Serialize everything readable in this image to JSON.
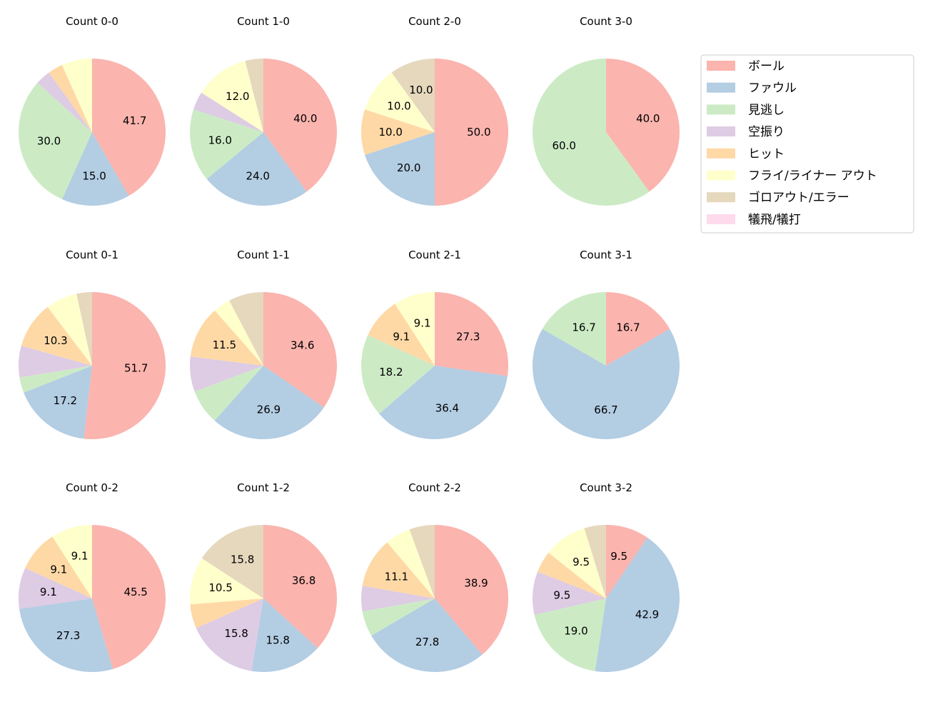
{
  "chart_data": {
    "type": "pie",
    "categories": [
      "ボール",
      "ファウル",
      "見逃し",
      "空振り",
      "ヒット",
      "フライ/ライナー アウト",
      "ゴロアウト/エラー",
      "犠飛/犠打"
    ],
    "colors": [
      "#fbb4ae",
      "#b3cde3",
      "#ccebc5",
      "#decbe4",
      "#fed9a6",
      "#ffffcc",
      "#e5d8bd",
      "#fddaec"
    ],
    "start_angle": 90,
    "direction": "clockwise",
    "legend_position": "right",
    "pies": [
      {
        "title": "Count 0-0",
        "values": [
          41.7,
          15.0,
          30.0,
          3.3,
          3.3,
          6.7,
          0,
          0
        ]
      },
      {
        "title": "Count 1-0",
        "values": [
          40.0,
          24.0,
          16.0,
          4.0,
          0,
          12.0,
          4.0,
          0
        ]
      },
      {
        "title": "Count 2-0",
        "values": [
          50.0,
          20.0,
          0,
          0,
          10.0,
          10.0,
          10.0,
          0
        ]
      },
      {
        "title": "Count 3-0",
        "values": [
          40.0,
          0,
          60.0,
          0,
          0,
          0,
          0,
          0
        ]
      },
      {
        "title": "Count 0-1",
        "values": [
          51.7,
          17.2,
          3.4,
          6.9,
          10.3,
          6.9,
          3.4,
          0
        ]
      },
      {
        "title": "Count 1-1",
        "values": [
          34.6,
          26.9,
          7.7,
          7.7,
          11.5,
          3.8,
          7.7,
          0
        ]
      },
      {
        "title": "Count 2-1",
        "values": [
          27.3,
          36.4,
          18.2,
          0,
          9.1,
          9.1,
          0,
          0
        ]
      },
      {
        "title": "Count 3-1",
        "values": [
          16.7,
          66.7,
          16.7,
          0,
          0,
          0,
          0,
          0
        ]
      },
      {
        "title": "Count 0-2",
        "values": [
          45.5,
          27.3,
          0,
          9.1,
          9.1,
          9.1,
          0,
          0
        ]
      },
      {
        "title": "Count 1-2",
        "values": [
          36.8,
          15.8,
          0,
          15.8,
          5.3,
          10.5,
          15.8,
          0
        ]
      },
      {
        "title": "Count 2-2",
        "values": [
          38.9,
          27.8,
          5.6,
          5.6,
          11.1,
          5.6,
          5.6,
          0
        ]
      },
      {
        "title": "Count 3-2",
        "values": [
          9.5,
          42.9,
          19.0,
          9.5,
          4.8,
          9.5,
          4.8,
          0
        ]
      }
    ]
  }
}
